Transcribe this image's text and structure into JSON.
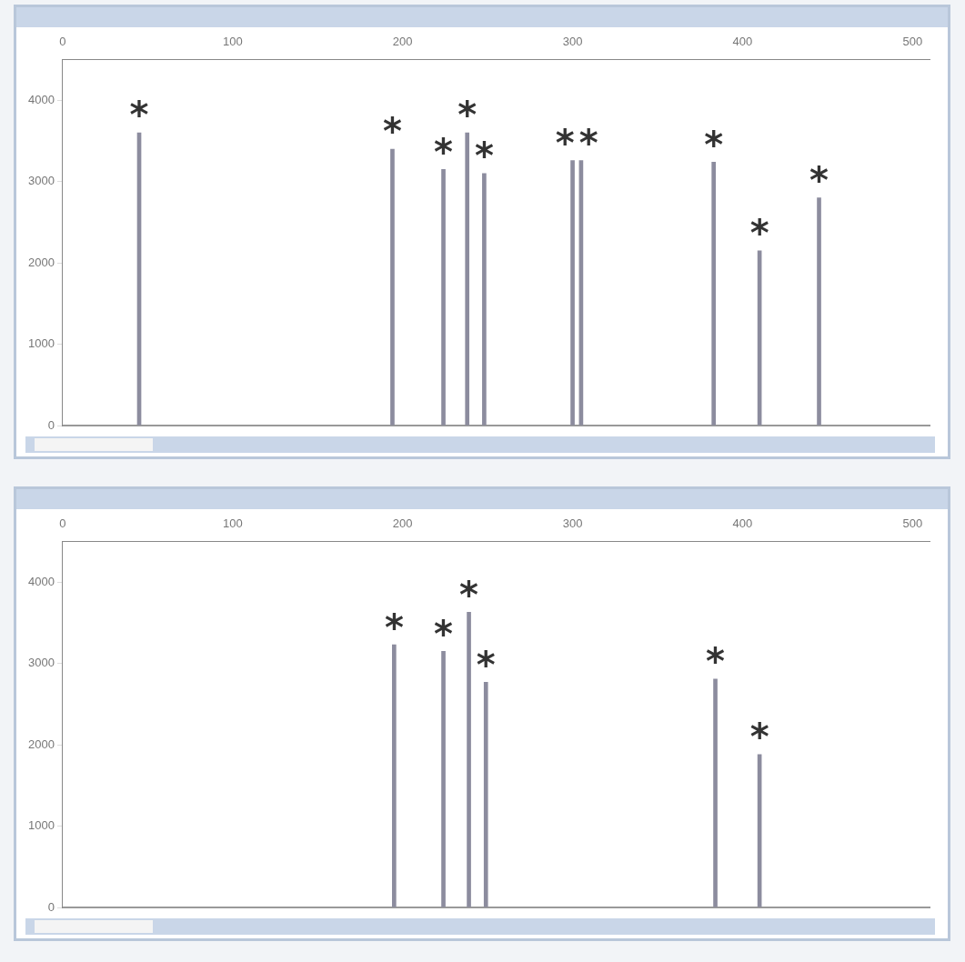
{
  "chart_data": [
    {
      "type": "bar",
      "x": [
        45,
        194,
        224,
        238,
        248,
        300,
        305,
        383,
        410,
        445
      ],
      "values": [
        3600,
        3400,
        3150,
        3600,
        3100,
        3260,
        3260,
        3240,
        2150,
        2800
      ],
      "color": "#8c8c9e",
      "xlim": [
        0,
        510
      ],
      "xticks": [
        0,
        100,
        200,
        300,
        400,
        500
      ],
      "ylim": [
        0,
        4500
      ],
      "yticks": [
        0,
        1000,
        2000,
        3000,
        4000
      ],
      "grid": false,
      "legend": false,
      "annotations": [
        {
          "text": "*",
          "x": 45,
          "y": 3600
        },
        {
          "text": "*",
          "x": 194,
          "y": 3400
        },
        {
          "text": "*",
          "x": 224,
          "y": 3150
        },
        {
          "text": "*",
          "x": 238,
          "y": 3600
        },
        {
          "text": "*",
          "x": 248,
          "y": 3100
        },
        {
          "text": "*",
          "x": 300,
          "y": 3260
        },
        {
          "text": "*",
          "x": 305,
          "y": 3260
        },
        {
          "text": "*",
          "x": 383,
          "y": 3240
        },
        {
          "text": "*",
          "x": 410,
          "y": 2150
        },
        {
          "text": "*",
          "x": 445,
          "y": 2800
        }
      ]
    },
    {
      "type": "bar",
      "x": [
        195,
        224,
        239,
        249,
        384,
        410
      ],
      "values": [
        3230,
        3150,
        3630,
        2770,
        2810,
        1880
      ],
      "color": "#8c8c9e",
      "xlim": [
        0,
        510
      ],
      "xticks": [
        0,
        100,
        200,
        300,
        400,
        500
      ],
      "ylim": [
        0,
        4500
      ],
      "yticks": [
        0,
        1000,
        2000,
        3000,
        4000
      ],
      "grid": false,
      "legend": false,
      "annotations": [
        {
          "text": "*",
          "x": 195,
          "y": 3230
        },
        {
          "text": "*",
          "x": 224,
          "y": 3150
        },
        {
          "text": "*",
          "x": 239,
          "y": 3630
        },
        {
          "text": "*",
          "x": 249,
          "y": 2770
        },
        {
          "text": "*",
          "x": 384,
          "y": 2810
        },
        {
          "text": "*",
          "x": 410,
          "y": 1880
        }
      ]
    }
  ]
}
